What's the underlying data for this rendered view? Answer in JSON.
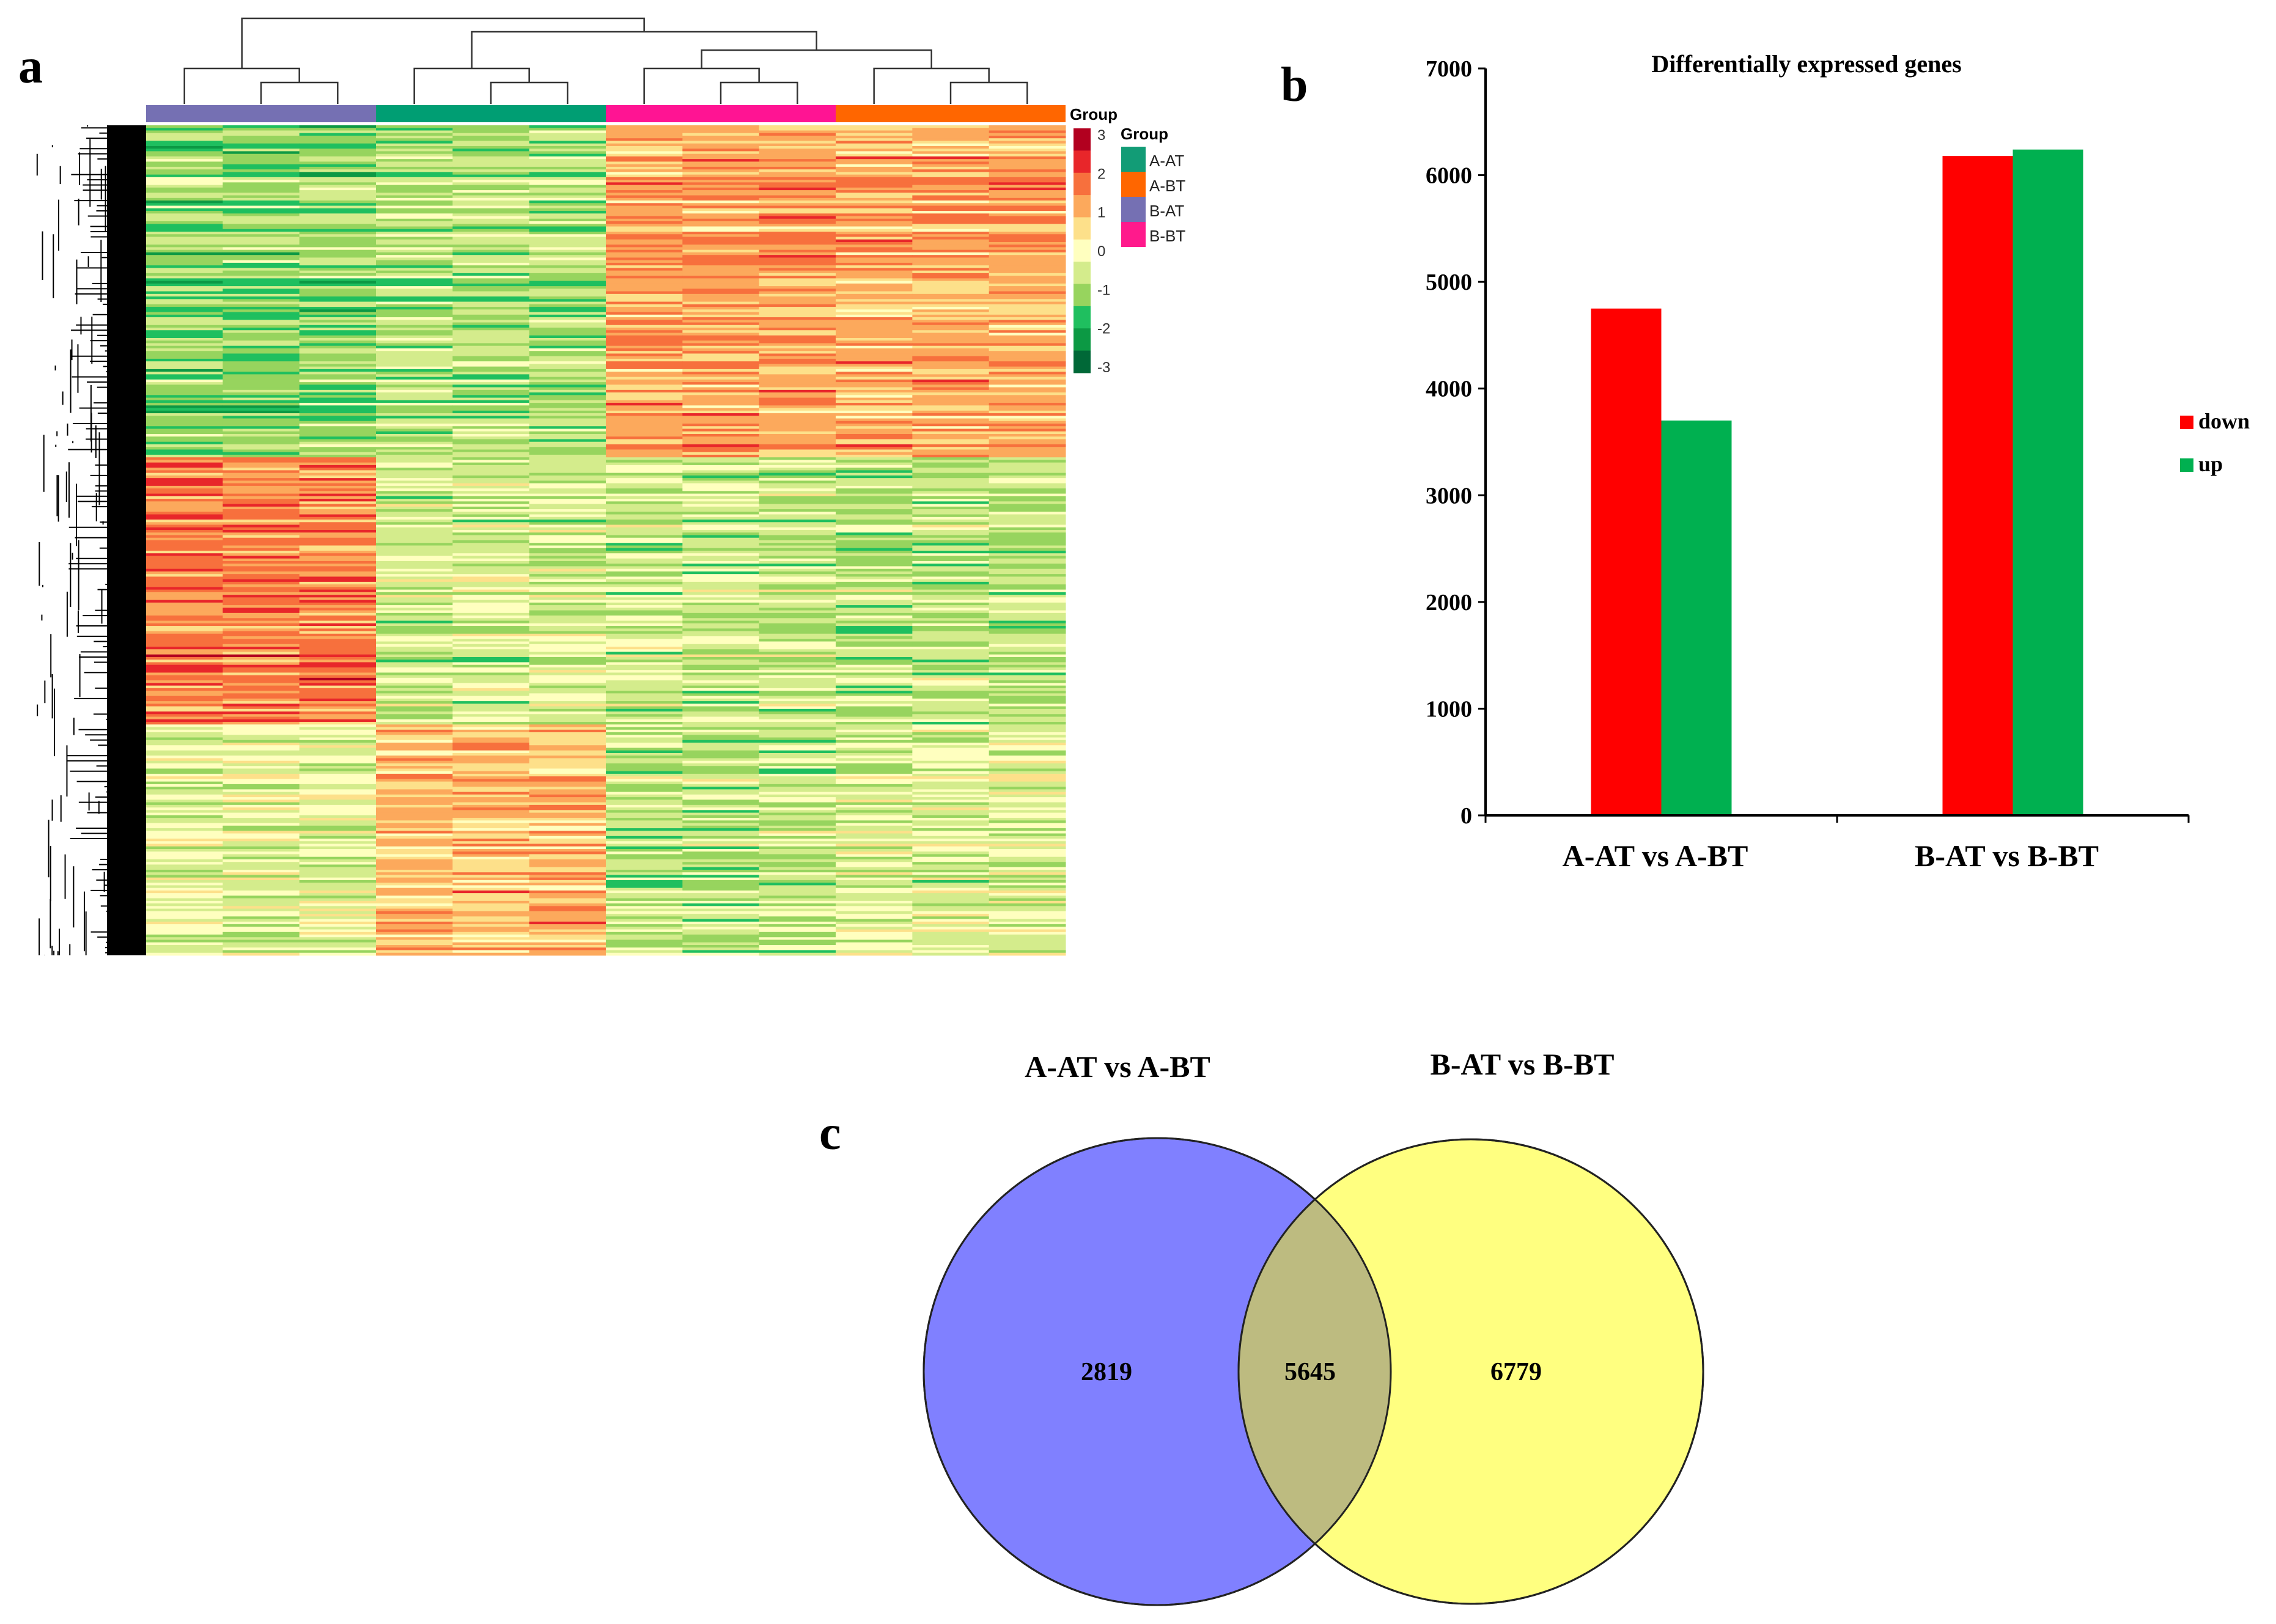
{
  "panels": {
    "a": "a",
    "b": "b",
    "c": "c"
  },
  "chart_data": [
    {
      "type": "heatmap",
      "panel": "a",
      "groups": [
        {
          "name": "B-AT",
          "color": "#7570b3"
        },
        {
          "name": "A-AT",
          "color": "#009e73"
        },
        {
          "name": "B-BT",
          "color": "#ff1493"
        },
        {
          "name": "A-BT",
          "color": "#ff6600"
        }
      ],
      "columns_per_group": 3,
      "annotation_title": "Group",
      "legend_title": "Group",
      "legend": [
        {
          "name": "A-AT",
          "color": "#129c76"
        },
        {
          "name": "A-BT",
          "color": "#ff6600"
        },
        {
          "name": "B-AT",
          "color": "#7570b3"
        },
        {
          "name": "B-BT",
          "color": "#ff1a8c"
        }
      ],
      "scale_ticks": [
        "3",
        "2",
        "1",
        "0",
        "-1",
        "-2",
        "-3"
      ],
      "scale_colors": [
        "#b2001f",
        "#e8262a",
        "#f7703d",
        "#fca95c",
        "#fde08a",
        "#ffffbf",
        "#d4ec8c",
        "#97d45e",
        "#1fbf5f",
        "#0c9944",
        "#006837"
      ]
    },
    {
      "type": "bar",
      "panel": "b",
      "title": "Differentially expressed genes",
      "categories": [
        "A-AT vs A-BT",
        "B-AT vs B-BT"
      ],
      "series": [
        {
          "name": "down",
          "color": "#ff0000",
          "values": [
            4750,
            6180
          ]
        },
        {
          "name": "up",
          "color": "#00b050",
          "values": [
            3700,
            6240
          ]
        }
      ],
      "ylim": [
        0,
        7000
      ],
      "yticks": [
        "0",
        "1000",
        "2000",
        "3000",
        "4000",
        "5000",
        "6000",
        "7000"
      ],
      "xlabel": "",
      "ylabel": "",
      "legend_position": "right"
    },
    {
      "type": "venn",
      "panel": "c",
      "sets": [
        {
          "name": "A-AT vs A-BT",
          "color": "#8080ff",
          "only": 2819
        },
        {
          "name": "B-AT vs B-BT",
          "color": "#ffff80",
          "only": 6779
        }
      ],
      "intersection": 5645,
      "intersection_color": "#bdbb80"
    }
  ]
}
